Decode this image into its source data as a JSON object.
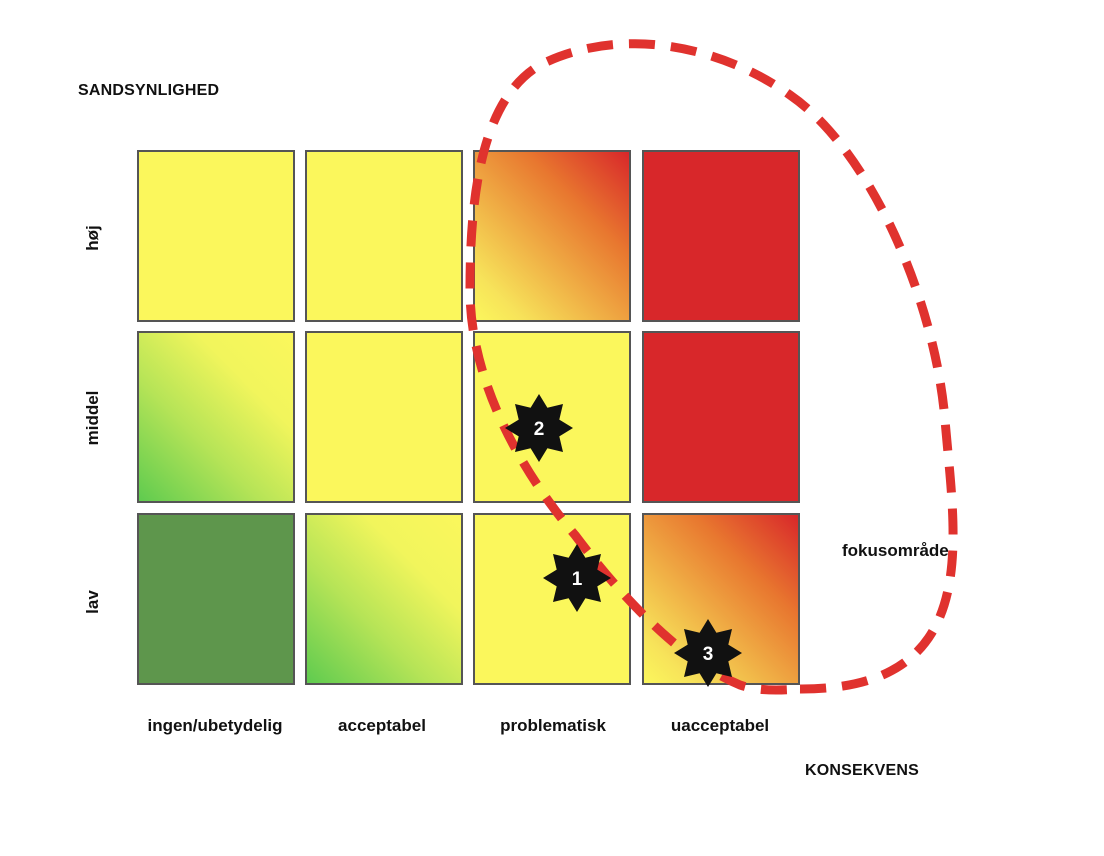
{
  "axes": {
    "y_title": "SANDSYNLIGHED",
    "x_title": "KONSEKVENS"
  },
  "rows": [
    {
      "label": "høj"
    },
    {
      "label": "middel"
    },
    {
      "label": "lav"
    }
  ],
  "columns": [
    {
      "label": "ingen/ubetydelig"
    },
    {
      "label": "acceptabel"
    },
    {
      "label": "problematisk"
    },
    {
      "label": "uacceptabel"
    }
  ],
  "cells": [
    [
      {
        "color": "yellow"
      },
      {
        "color": "yellow"
      },
      {
        "color": "yellow-to-red-gradient"
      },
      {
        "color": "red"
      }
    ],
    [
      {
        "color": "green-to-yellow-gradient"
      },
      {
        "color": "yellow"
      },
      {
        "color": "yellow"
      },
      {
        "color": "red"
      }
    ],
    [
      {
        "color": "dark-green"
      },
      {
        "color": "green-to-yellow-gradient"
      },
      {
        "color": "yellow"
      },
      {
        "color": "yellow-to-red-gradient"
      }
    ]
  ],
  "markers": [
    {
      "number": "1",
      "row": "lav",
      "column": "problematisk"
    },
    {
      "number": "2",
      "row": "middel",
      "column": "problematisk"
    },
    {
      "number": "3",
      "row": "lav",
      "column": "uacceptabel"
    }
  ],
  "focus_area": {
    "label": "fokusområde",
    "stroke_color": "#e0322e",
    "style": "dashed"
  },
  "palette": {
    "yellow": "#fbf75c",
    "red": "#d8272a",
    "dark_green": "#5e964c",
    "light_green": "#5fcb4f"
  }
}
